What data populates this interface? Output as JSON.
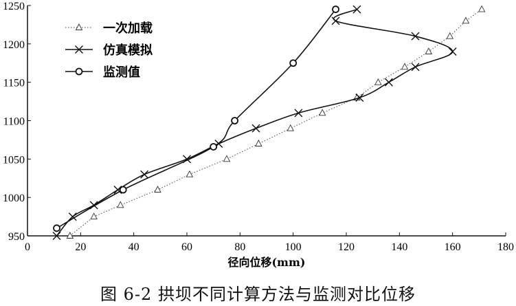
{
  "chart_data": {
    "type": "line",
    "title": "",
    "xlabel": "径向位移(mm)",
    "ylabel": "",
    "xlim": [
      0,
      180
    ],
    "ylim": [
      950,
      1250
    ],
    "xticks": [
      0,
      20,
      40,
      60,
      80,
      100,
      120,
      140,
      160,
      180
    ],
    "yticks": [
      950,
      1000,
      1050,
      1100,
      1150,
      1200,
      1250
    ],
    "grid": false,
    "legend_position": "top-left",
    "series": [
      {
        "name": "一次加载",
        "marker": "triangle",
        "style": "dotted",
        "x": [
          16,
          25,
          35,
          49,
          61,
          75,
          87,
          99,
          111,
          124,
          132,
          142,
          151,
          159,
          165,
          171
        ],
        "y": [
          950,
          975,
          990,
          1010,
          1030,
          1050,
          1070,
          1090,
          1110,
          1130,
          1150,
          1170,
          1190,
          1210,
          1230,
          1245
        ]
      },
      {
        "name": "仿真模拟",
        "marker": "x",
        "style": "solid",
        "x": [
          11,
          17,
          25,
          34,
          44,
          60,
          72,
          86,
          102,
          125,
          136,
          146,
          160,
          146,
          116,
          124
        ],
        "y": [
          950,
          975,
          990,
          1010,
          1030,
          1050,
          1070,
          1090,
          1110,
          1130,
          1150,
          1170,
          1190,
          1210,
          1230,
          1245
        ]
      },
      {
        "name": "监测值",
        "marker": "circle",
        "style": "solid",
        "x": [
          11,
          36,
          70,
          78,
          100,
          116
        ],
        "y": [
          960,
          1010,
          1066,
          1100,
          1175,
          1245
        ]
      }
    ]
  },
  "caption": "图 6-2   拱坝不同计算方法与监测对比位移"
}
